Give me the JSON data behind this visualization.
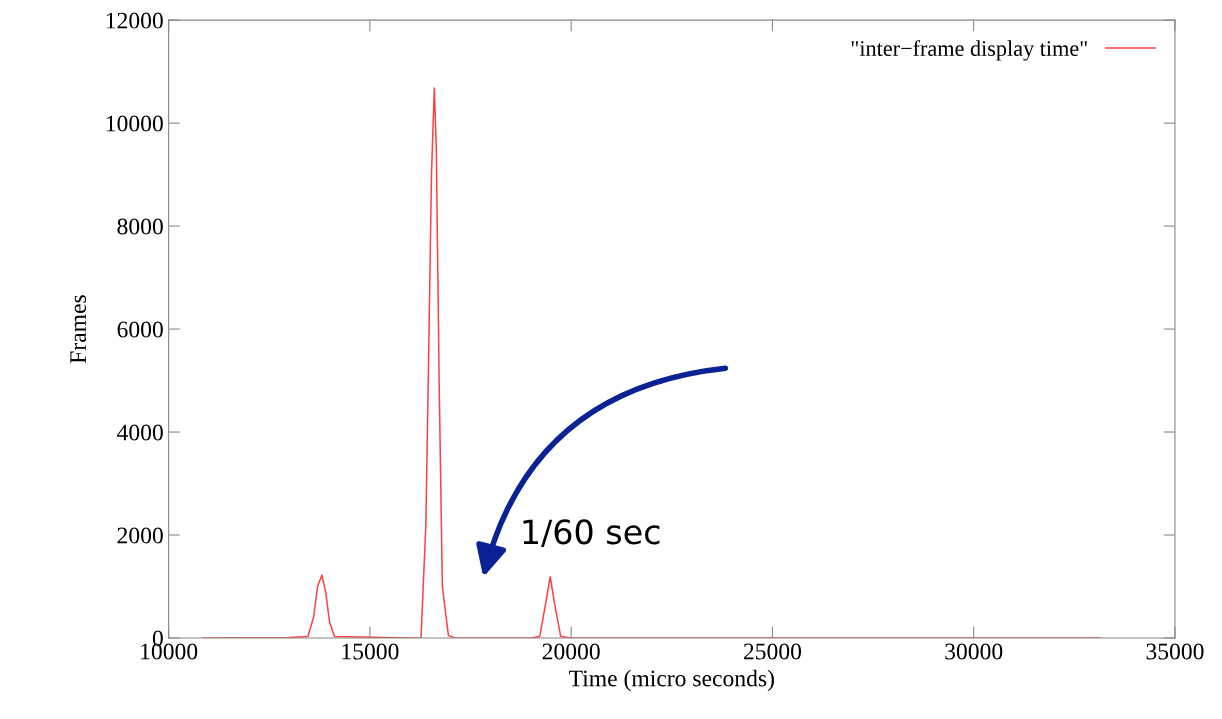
{
  "chart_data": {
    "type": "line",
    "xlabel": "Time (micro seconds)",
    "ylabel": "Frames",
    "annotations": [
      "1/60 sec"
    ],
    "xlim": [
      10000,
      35000
    ],
    "xticks": [
      10000,
      15000,
      20000,
      25000,
      30000,
      35000
    ],
    "ylim": [
      0,
      12000
    ],
    "yticks": [
      0,
      2000,
      4000,
      6000,
      8000,
      10000,
      12000
    ],
    "grid": false,
    "legend": "top right",
    "series": [
      {
        "name": "\"inter−frame display time\"",
        "color": "#ff4040",
        "x": [
          10850,
          13000,
          13460,
          13600,
          13700,
          13806,
          13900,
          14000,
          14120,
          16000,
          16270,
          16390,
          16460,
          16530,
          16600,
          16650,
          16720,
          16800,
          16950,
          17100,
          19000,
          19220,
          19350,
          19480,
          19580,
          19740,
          20000,
          33130
        ],
        "values": [
          0,
          10,
          30,
          400,
          1000,
          1220,
          900,
          300,
          30,
          0,
          0,
          2200,
          5500,
          9000,
          10680,
          9500,
          5000,
          1000,
          50,
          0,
          0,
          30,
          600,
          1190,
          700,
          30,
          0,
          0
        ]
      }
    ]
  }
}
